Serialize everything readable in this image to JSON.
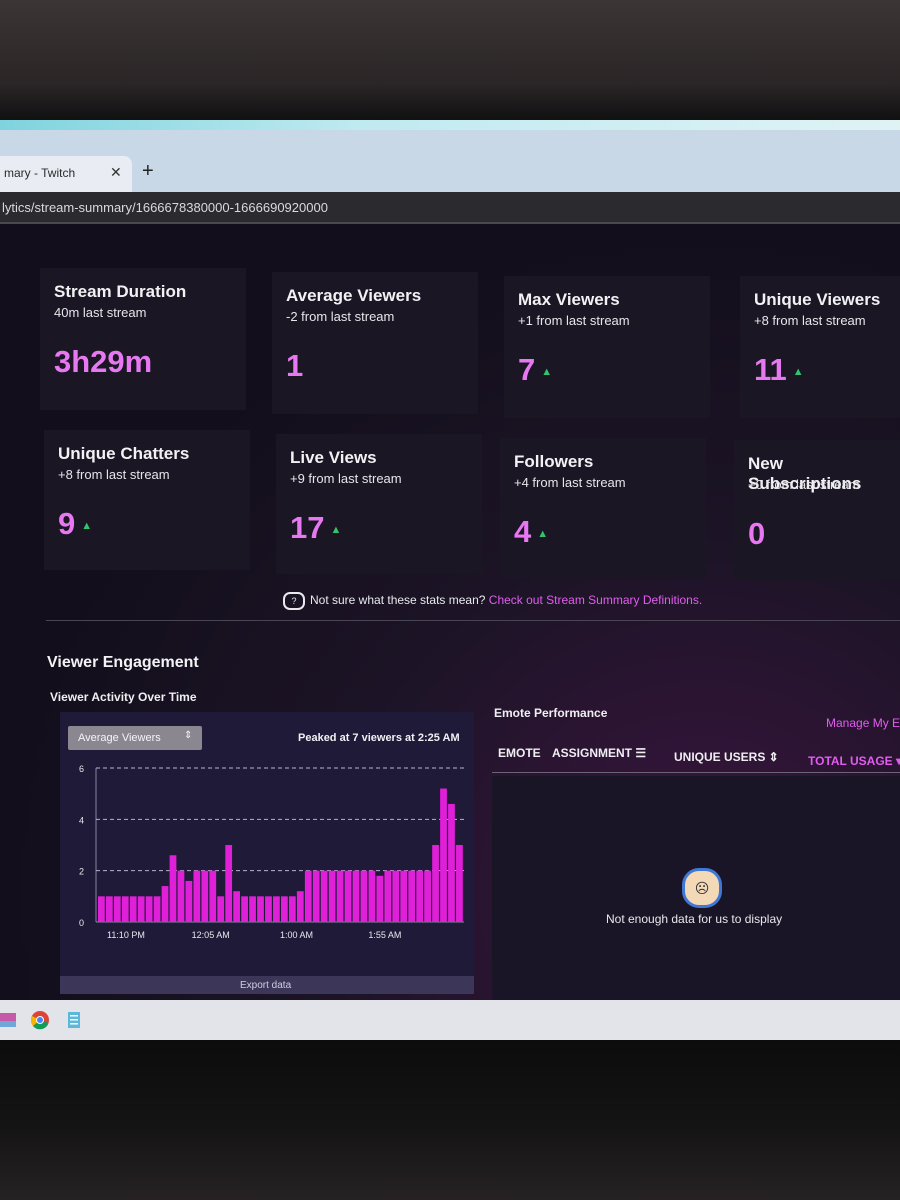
{
  "browser": {
    "tab_title": "mary - Twitch",
    "tab_close": "✕",
    "new_tab": "+",
    "url": "lytics/stream-summary/1666678380000-1666690920000"
  },
  "stats": [
    {
      "label": "Stream Duration",
      "sub": "40m last stream",
      "value": "3h29m",
      "trend": ""
    },
    {
      "label": "Average Viewers",
      "sub": "-2 from last stream",
      "value": "1",
      "trend": ""
    },
    {
      "label": "Max Viewers",
      "sub": "+1 from last stream",
      "value": "7",
      "trend": "▲"
    },
    {
      "label": "Unique Viewers",
      "sub": "+8 from last stream",
      "value": "11",
      "trend": "▲"
    },
    {
      "label": "Unique Chatters",
      "sub": "+8 from last stream",
      "value": "9",
      "trend": "▲"
    },
    {
      "label": "Live Views",
      "sub": "+9 from last stream",
      "value": "17",
      "trend": "▲"
    },
    {
      "label": "Followers",
      "sub": "+4 from last stream",
      "value": "4",
      "trend": "▲"
    },
    {
      "label": "New Subscriptions",
      "sub": "+0 from last stream",
      "value": "0",
      "trend": ""
    }
  ],
  "hint": {
    "icon": "?",
    "text": "Not sure what these stats mean?",
    "link": "Check out Stream Summary Definitions."
  },
  "engagement": {
    "title": "Viewer Engagement",
    "activity_title": "Viewer Activity Over Time",
    "dropdown_value": "Average Viewers",
    "dropdown_caret": "⇕",
    "peak_text": "Peaked at 7 viewers at 2:25 AM",
    "export_label": "Export data"
  },
  "chart_data": {
    "type": "bar",
    "xlabel": "",
    "ylabel": "",
    "ylim": [
      0,
      6
    ],
    "yticks": [
      "0",
      "2",
      "4",
      "6"
    ],
    "xticks": [
      "11:10 PM",
      "12:05 AM",
      "1:00 AM",
      "1:55 AM"
    ],
    "bar_color": "#e020d8",
    "grid": true,
    "values": [
      1,
      1,
      1,
      1,
      1,
      1,
      1,
      1,
      1.4,
      2.6,
      2,
      1.6,
      2,
      2,
      2,
      1,
      3,
      1.2,
      1,
      1,
      1,
      1,
      1,
      1,
      1,
      1.2,
      2,
      2,
      2,
      2,
      2,
      2,
      2,
      2,
      2,
      1.8,
      2,
      2,
      2,
      2,
      2,
      2,
      3,
      5.2,
      4.6,
      3
    ]
  },
  "emotes": {
    "title": "Emote Performance",
    "manage_link": "Manage My E",
    "columns": [
      "EMOTE",
      "ASSIGNMENT ☰",
      "UNIQUE USERS ⇕",
      "TOTAL USAGE ▾"
    ],
    "empty_text": "Not enough data for us to display"
  }
}
